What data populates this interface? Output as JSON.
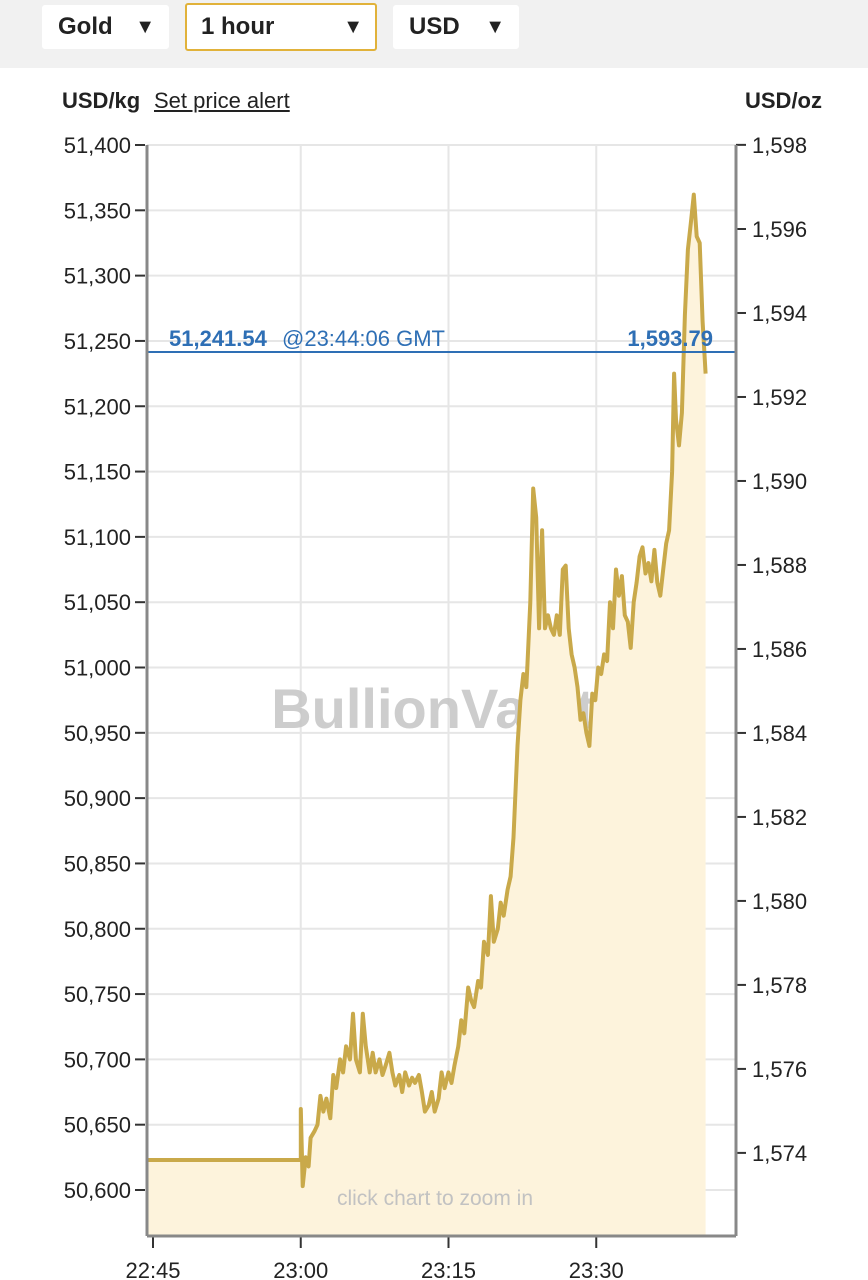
{
  "toolbar": {
    "metal": {
      "value": "Gold",
      "caret": "▼"
    },
    "timeframe": {
      "value": "1 hour",
      "caret": "▼"
    },
    "currency": {
      "value": "USD",
      "caret": "▼"
    }
  },
  "header": {
    "left_unit": "USD/kg",
    "alert_link": "Set price alert",
    "right_unit": "USD/oz"
  },
  "colors": {
    "line": "#c9a94a",
    "fill": "#fdf3dc",
    "price_line": "#2e6fb5",
    "active_border": "#e1b23a",
    "watermark": "#c8c8c8"
  },
  "chart_data": {
    "type": "area",
    "watermark": "BullionVault",
    "hint": "click chart to zoom in",
    "current": {
      "price_kg": "51,241.54",
      "time": "@23:44:06 GMT",
      "price_oz": "1,593.79",
      "value_kg": 51241.54
    },
    "x_axis": {
      "unit": "minutes",
      "ticks": [
        {
          "label": "22:45",
          "value": 0
        },
        {
          "label": "23:00",
          "value": 15
        },
        {
          "label": "23:15",
          "value": 30
        },
        {
          "label": "23:30",
          "value": 45
        }
      ],
      "range": [
        0,
        59
      ]
    },
    "y_left": {
      "unit": "USD/kg",
      "range": [
        50570,
        51400
      ],
      "ticks": [
        {
          "label": "51,400",
          "value": 51400
        },
        {
          "label": "51,350",
          "value": 51350
        },
        {
          "label": "51,300",
          "value": 51300
        },
        {
          "label": "51,250",
          "value": 51250
        },
        {
          "label": "51,200",
          "value": 51200
        },
        {
          "label": "51,150",
          "value": 51150
        },
        {
          "label": "51,100",
          "value": 51100
        },
        {
          "label": "51,050",
          "value": 51050
        },
        {
          "label": "51,000",
          "value": 51000
        },
        {
          "label": "50,950",
          "value": 50950
        },
        {
          "label": "50,900",
          "value": 50900
        },
        {
          "label": "50,850",
          "value": 50850
        },
        {
          "label": "50,800",
          "value": 50800
        },
        {
          "label": "50,750",
          "value": 50750
        },
        {
          "label": "50,700",
          "value": 50700
        },
        {
          "label": "50,650",
          "value": 50650
        },
        {
          "label": "50,600",
          "value": 50600
        }
      ]
    },
    "y_right": {
      "unit": "USD/oz",
      "ticks": [
        {
          "label": "1,598",
          "value": 51400.1
        },
        {
          "label": "1,596",
          "value": 51335.7
        },
        {
          "label": "1,594",
          "value": 51271.4
        },
        {
          "label": "1,592",
          "value": 51207.1
        },
        {
          "label": "1,590",
          "value": 51142.8
        },
        {
          "label": "1,588",
          "value": 51078.5
        },
        {
          "label": "1,586",
          "value": 51014.2
        },
        {
          "label": "1,584",
          "value": 50949.9
        },
        {
          "label": "1,582",
          "value": 50885.6
        },
        {
          "label": "1,580",
          "value": 50821.3
        },
        {
          "label": "1,578",
          "value": 50757.0
        },
        {
          "label": "1,576",
          "value": 50692.7
        },
        {
          "label": "1,574",
          "value": 50628.4
        }
      ]
    },
    "series": [
      {
        "points": [
          [
            -0.5,
            50623
          ],
          [
            15.0,
            50623
          ],
          [
            15.0,
            50662
          ],
          [
            15.2,
            50603
          ],
          [
            15.5,
            50625
          ],
          [
            15.8,
            50618
          ],
          [
            16.0,
            50640
          ],
          [
            16.4,
            50645
          ],
          [
            16.7,
            50650
          ],
          [
            17.0,
            50672
          ],
          [
            17.3,
            50660
          ],
          [
            17.6,
            50670
          ],
          [
            18.0,
            50655
          ],
          [
            18.3,
            50688
          ],
          [
            18.6,
            50678
          ],
          [
            19.0,
            50700
          ],
          [
            19.3,
            50690
          ],
          [
            19.6,
            50710
          ],
          [
            20.0,
            50700
          ],
          [
            20.3,
            50735
          ],
          [
            20.6,
            50700
          ],
          [
            21.0,
            50690
          ],
          [
            21.3,
            50735
          ],
          [
            21.6,
            50710
          ],
          [
            22.0,
            50690
          ],
          [
            22.3,
            50705
          ],
          [
            22.6,
            50690
          ],
          [
            23.0,
            50700
          ],
          [
            23.3,
            50688
          ],
          [
            23.6,
            50695
          ],
          [
            24.0,
            50705
          ],
          [
            24.3,
            50690
          ],
          [
            24.6,
            50680
          ],
          [
            25.0,
            50688
          ],
          [
            25.3,
            50675
          ],
          [
            25.6,
            50690
          ],
          [
            26.0,
            50680
          ],
          [
            26.3,
            50686
          ],
          [
            26.6,
            50682
          ],
          [
            27.0,
            50688
          ],
          [
            27.3,
            50675
          ],
          [
            27.6,
            50660
          ],
          [
            28.0,
            50665
          ],
          [
            28.3,
            50675
          ],
          [
            28.6,
            50660
          ],
          [
            29.0,
            50670
          ],
          [
            29.3,
            50690
          ],
          [
            29.6,
            50678
          ],
          [
            30.0,
            50690
          ],
          [
            30.3,
            50682
          ],
          [
            30.6,
            50695
          ],
          [
            31.0,
            50710
          ],
          [
            31.3,
            50730
          ],
          [
            31.6,
            50720
          ],
          [
            32.0,
            50755
          ],
          [
            32.3,
            50745
          ],
          [
            32.6,
            50740
          ],
          [
            33.0,
            50760
          ],
          [
            33.3,
            50755
          ],
          [
            33.6,
            50790
          ],
          [
            34.0,
            50780
          ],
          [
            34.3,
            50825
          ],
          [
            34.6,
            50790
          ],
          [
            35.0,
            50800
          ],
          [
            35.3,
            50820
          ],
          [
            35.6,
            50810
          ],
          [
            36.0,
            50830
          ],
          [
            36.3,
            50840
          ],
          [
            36.6,
            50870
          ],
          [
            37.0,
            50940
          ],
          [
            37.3,
            50975
          ],
          [
            37.6,
            50995
          ],
          [
            37.9,
            50985
          ],
          [
            38.0,
            51000
          ],
          [
            38.3,
            51050
          ],
          [
            38.6,
            51137
          ],
          [
            38.9,
            51115
          ],
          [
            39.2,
            51030
          ],
          [
            39.5,
            51105
          ],
          [
            39.8,
            51030
          ],
          [
            40.1,
            51040
          ],
          [
            40.4,
            51030
          ],
          [
            40.7,
            51025
          ],
          [
            41.0,
            51040
          ],
          [
            41.3,
            51025
          ],
          [
            41.6,
            51075
          ],
          [
            41.9,
            51078
          ],
          [
            42.2,
            51030
          ],
          [
            42.5,
            51010
          ],
          [
            42.8,
            51000
          ],
          [
            43.1,
            50985
          ],
          [
            43.4,
            50960
          ],
          [
            43.7,
            50965
          ],
          [
            44.0,
            50950
          ],
          [
            44.3,
            50940
          ],
          [
            44.6,
            50980
          ],
          [
            44.9,
            50975
          ],
          [
            45.2,
            51000
          ],
          [
            45.5,
            50995
          ],
          [
            45.8,
            51010
          ],
          [
            46.1,
            51005
          ],
          [
            46.4,
            51050
          ],
          [
            46.7,
            51030
          ],
          [
            47.0,
            51075
          ],
          [
            47.3,
            51055
          ],
          [
            47.6,
            51070
          ],
          [
            47.9,
            51040
          ],
          [
            48.2,
            51035
          ],
          [
            48.5,
            51015
          ],
          [
            48.8,
            51050
          ],
          [
            49.1,
            51065
          ],
          [
            49.4,
            51085
          ],
          [
            49.7,
            51092
          ],
          [
            50.0,
            51072
          ],
          [
            50.3,
            51080
          ],
          [
            50.6,
            51066
          ],
          [
            50.9,
            51090
          ],
          [
            51.2,
            51065
          ],
          [
            51.5,
            51055
          ],
          [
            51.8,
            51075
          ],
          [
            52.1,
            51095
          ],
          [
            52.4,
            51105
          ],
          [
            52.7,
            51150
          ],
          [
            52.9,
            51225
          ],
          [
            53.1,
            51190
          ],
          [
            53.4,
            51170
          ],
          [
            53.7,
            51195
          ],
          [
            54.0,
            51270
          ],
          [
            54.3,
            51320
          ],
          [
            54.6,
            51340
          ],
          [
            54.9,
            51362
          ],
          [
            55.2,
            51330
          ],
          [
            55.5,
            51325
          ],
          [
            55.8,
            51265
          ],
          [
            56.1,
            51225
          ]
        ]
      }
    ]
  }
}
